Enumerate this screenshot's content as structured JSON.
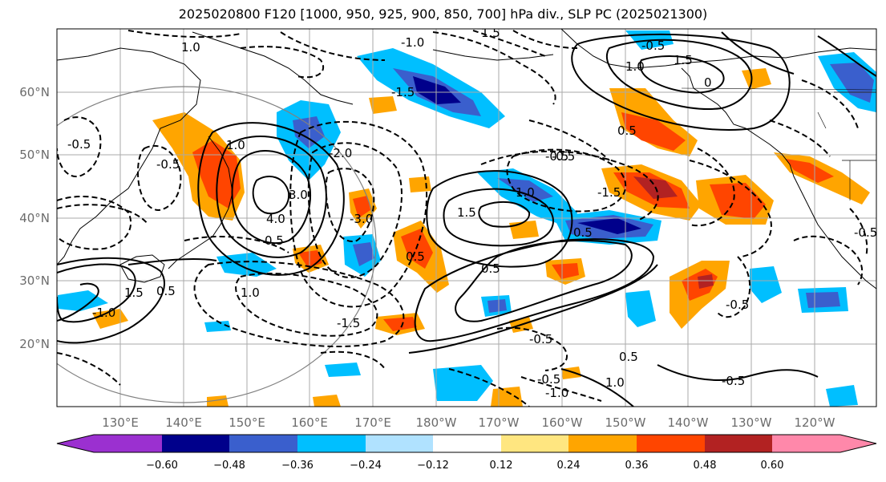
{
  "title": "2025020800 F120 [1000, 950, 925, 900, 850, 700] hPa div., SLP PC (2025021300)",
  "lon_ticks": [
    "130°E",
    "140°E",
    "150°E",
    "160°E",
    "170°E",
    "180°W",
    "170°W",
    "160°W",
    "150°W",
    "140°W",
    "130°W",
    "120°W"
  ],
  "lat_ticks": [
    "60°N",
    "50°N",
    "40°N",
    "30°N",
    "20°N"
  ],
  "colorbar": {
    "ticks": [
      "−0.60",
      "−0.48",
      "−0.36",
      "−0.24",
      "−0.12",
      "0.12",
      "0.24",
      "0.36",
      "0.48",
      "0.60"
    ],
    "colors": [
      "#9b30d0",
      "#00008b",
      "#3a5fcd",
      "#00bfff",
      "#b0e2ff",
      "#ffffff",
      "#ffe680",
      "#ffa500",
      "#ff4500",
      "#b22222",
      "#ff88aa"
    ]
  },
  "contour_labels": [
    "1.0",
    "-1.0",
    "1.5",
    "-1.5",
    "-0.5",
    "0.5",
    "-2.0",
    "3.0",
    "-3.0",
    "4.0",
    "0.5",
    "-0.5",
    "1.0",
    "-0.5",
    "0.5",
    "0.5",
    "-0.5",
    "1.0",
    "-1.0",
    "-0.5",
    "0.5",
    "1.5",
    "-1.5",
    "1.5",
    "0.5",
    "-0.5",
    "0",
    "-0.5",
    "1.0",
    "1.5",
    "-0.5",
    "1.0",
    "-1.0",
    "-0.5",
    "-1.5",
    "-0.5",
    "0.5",
    "1.0"
  ]
}
